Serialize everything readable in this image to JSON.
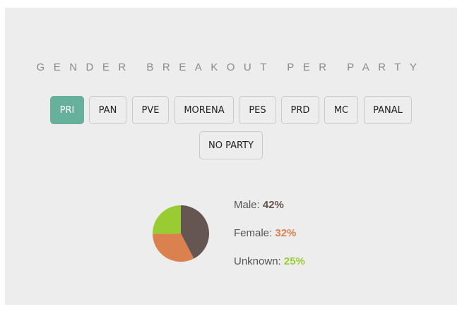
{
  "title": "GENDER BREAKOUT PER PARTY",
  "parties": [
    {
      "label": "PRI",
      "active": true
    },
    {
      "label": "PAN",
      "active": false
    },
    {
      "label": "PVE",
      "active": false
    },
    {
      "label": "MORENA",
      "active": false
    },
    {
      "label": "PES",
      "active": false
    },
    {
      "label": "PRD",
      "active": false
    },
    {
      "label": "MC",
      "active": false
    },
    {
      "label": "PANAL",
      "active": false
    },
    {
      "label": "NO PARTY",
      "active": false
    }
  ],
  "colors": {
    "active_button": "#66b09c",
    "male": "#665651",
    "female": "#db8150",
    "unknown": "#99cc33"
  },
  "chart_data": {
    "type": "pie",
    "title": "",
    "categories": [
      "Male",
      "Female",
      "Unknown"
    ],
    "values": [
      42,
      32,
      25
    ],
    "value_labels": [
      "42%",
      "32%",
      "25%"
    ],
    "legend_labels": [
      "Male:",
      "Female:",
      "Unknown:"
    ],
    "legend_placement": "right",
    "colors": [
      "#665651",
      "#db8150",
      "#99cc33"
    ]
  }
}
